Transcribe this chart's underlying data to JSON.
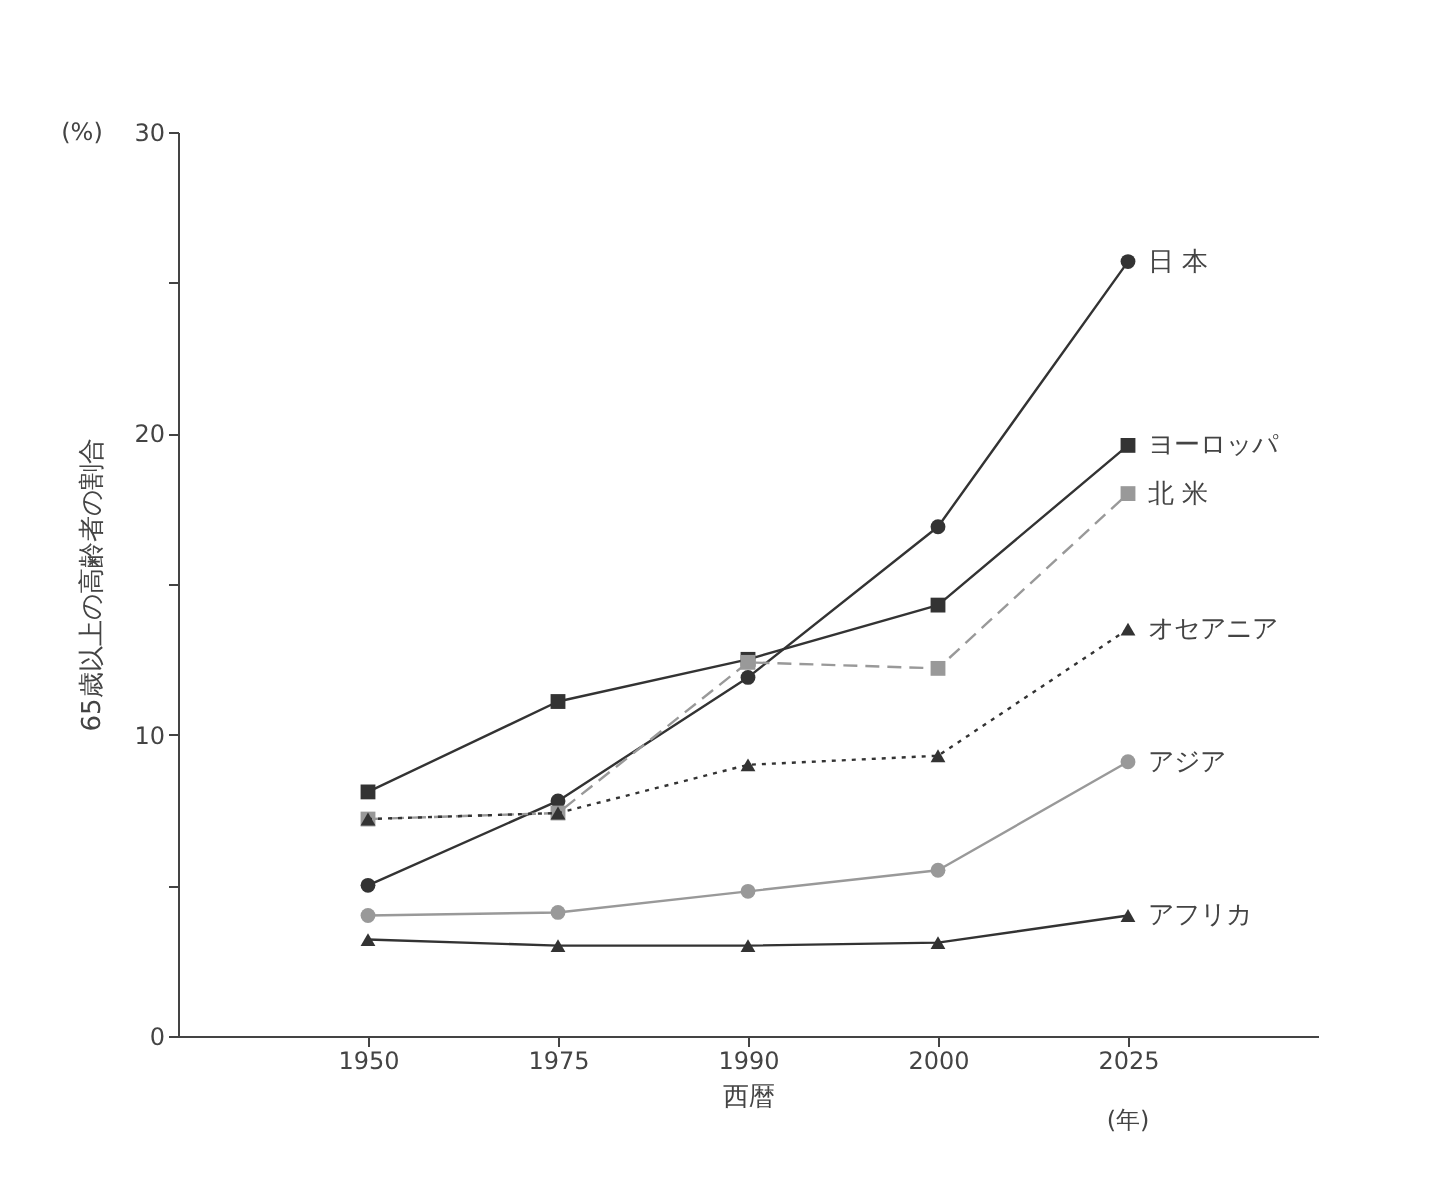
{
  "chart_data": {
    "type": "line",
    "xlabel": "西暦",
    "ylabel": "65歳以上の高齢者の割合",
    "annotations": [
      "(%)",
      "(年)"
    ],
    "categories": [
      "1950",
      "1975",
      "1990",
      "2000",
      "2025"
    ],
    "ylim": [
      0,
      30
    ],
    "yticks": [
      0,
      {
        "value": 5,
        "label": null
      },
      10,
      {
        "value": 15,
        "label": null
      },
      20,
      {
        "value": 25,
        "label": null
      },
      30
    ],
    "grid": false,
    "series": [
      {
        "name": "日 本",
        "color": "#333333",
        "marker": "circle",
        "line_style": "solid",
        "values": [
          5.0,
          7.8,
          11.9,
          16.9,
          25.7
        ]
      },
      {
        "name": "ヨーロッパ",
        "color": "#333333",
        "marker": "square",
        "line_style": "solid",
        "values": [
          8.1,
          11.1,
          12.5,
          14.3,
          19.6
        ]
      },
      {
        "name": "北 米",
        "color": "#999999",
        "marker": "square",
        "line_style": "dashed",
        "values": [
          7.2,
          7.4,
          12.4,
          12.2,
          18.0
        ]
      },
      {
        "name": "オセアニア",
        "color": "#333333",
        "marker": "triangle",
        "line_style": "dotted",
        "values": [
          7.2,
          7.4,
          9.0,
          9.3,
          13.5
        ]
      },
      {
        "name": "アジア",
        "color": "#999999",
        "marker": "circle",
        "line_style": "solid",
        "values": [
          4.0,
          4.1,
          4.8,
          5.5,
          9.1
        ]
      },
      {
        "name": "アフリカ",
        "color": "#333333",
        "marker": "triangle",
        "line_style": "solid",
        "values": [
          3.2,
          3.0,
          3.0,
          3.1,
          4.0
        ]
      }
    ]
  }
}
